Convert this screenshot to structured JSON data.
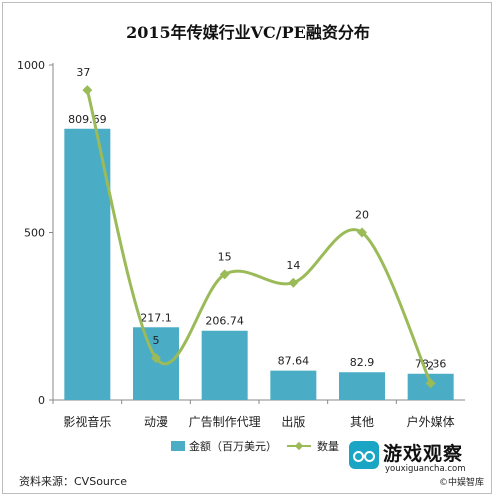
{
  "chart_data": {
    "type": "bar+line",
    "title": "2015年传媒行业VC/PE融资分布",
    "categories": [
      "影视音乐",
      "动漫",
      "广告制作代理",
      "出版",
      "其他",
      "户外媒体"
    ],
    "series": [
      {
        "name": "金额（百万美元）",
        "type": "bar",
        "axis": "left",
        "values": [
          809.69,
          217.1,
          206.74,
          87.64,
          82.9,
          78.36
        ],
        "labels": [
          "809.69",
          "217.1",
          "206.74",
          "87.64",
          "82.9",
          "78.36"
        ]
      },
      {
        "name": "数量",
        "type": "line",
        "axis": "right",
        "values": [
          37,
          5,
          15,
          14,
          20,
          2
        ],
        "labels": [
          "37",
          "5",
          "15",
          "14",
          "20",
          "2"
        ]
      }
    ],
    "ylim": [
      0,
      1000
    ],
    "yticks": [
      "0",
      "500",
      "1000"
    ],
    "y2lim": [
      0,
      40
    ],
    "legend_position": "bottom",
    "colors": {
      "bar": "#4bacc6",
      "line": "#9bbb59"
    }
  },
  "source": "资料来源：CVSource",
  "logo": {
    "name": "游戏观察",
    "url": "youxiguancha.com",
    "sub": "©中娱智库"
  }
}
